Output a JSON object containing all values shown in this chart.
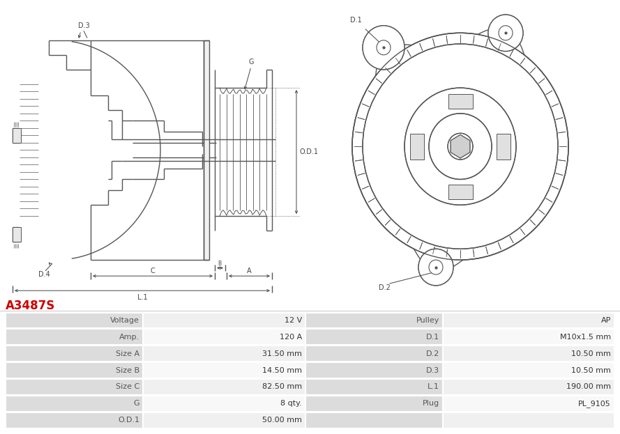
{
  "title": "A3487S",
  "title_color": "#cc0000",
  "bg_color": "#ffffff",
  "lc": "#555555",
  "dim_color": "#444444",
  "left_col_labels": [
    "Voltage",
    "Amp.",
    "Size A",
    "Size B",
    "Size C",
    "G",
    "O.D.1"
  ],
  "left_col_values": [
    "12 V",
    "120 A",
    "31.50 mm",
    "14.50 mm",
    "82.50 mm",
    "8 qty.",
    "50.00 mm"
  ],
  "right_col_labels": [
    "Pulley",
    "D.1",
    "D.2",
    "D.3",
    "L.1",
    "Plug",
    ""
  ],
  "right_col_values": [
    "AP",
    "M10x1.5 mm",
    "10.50 mm",
    "10.50 mm",
    "190.00 mm",
    "PL_9105",
    ""
  ]
}
